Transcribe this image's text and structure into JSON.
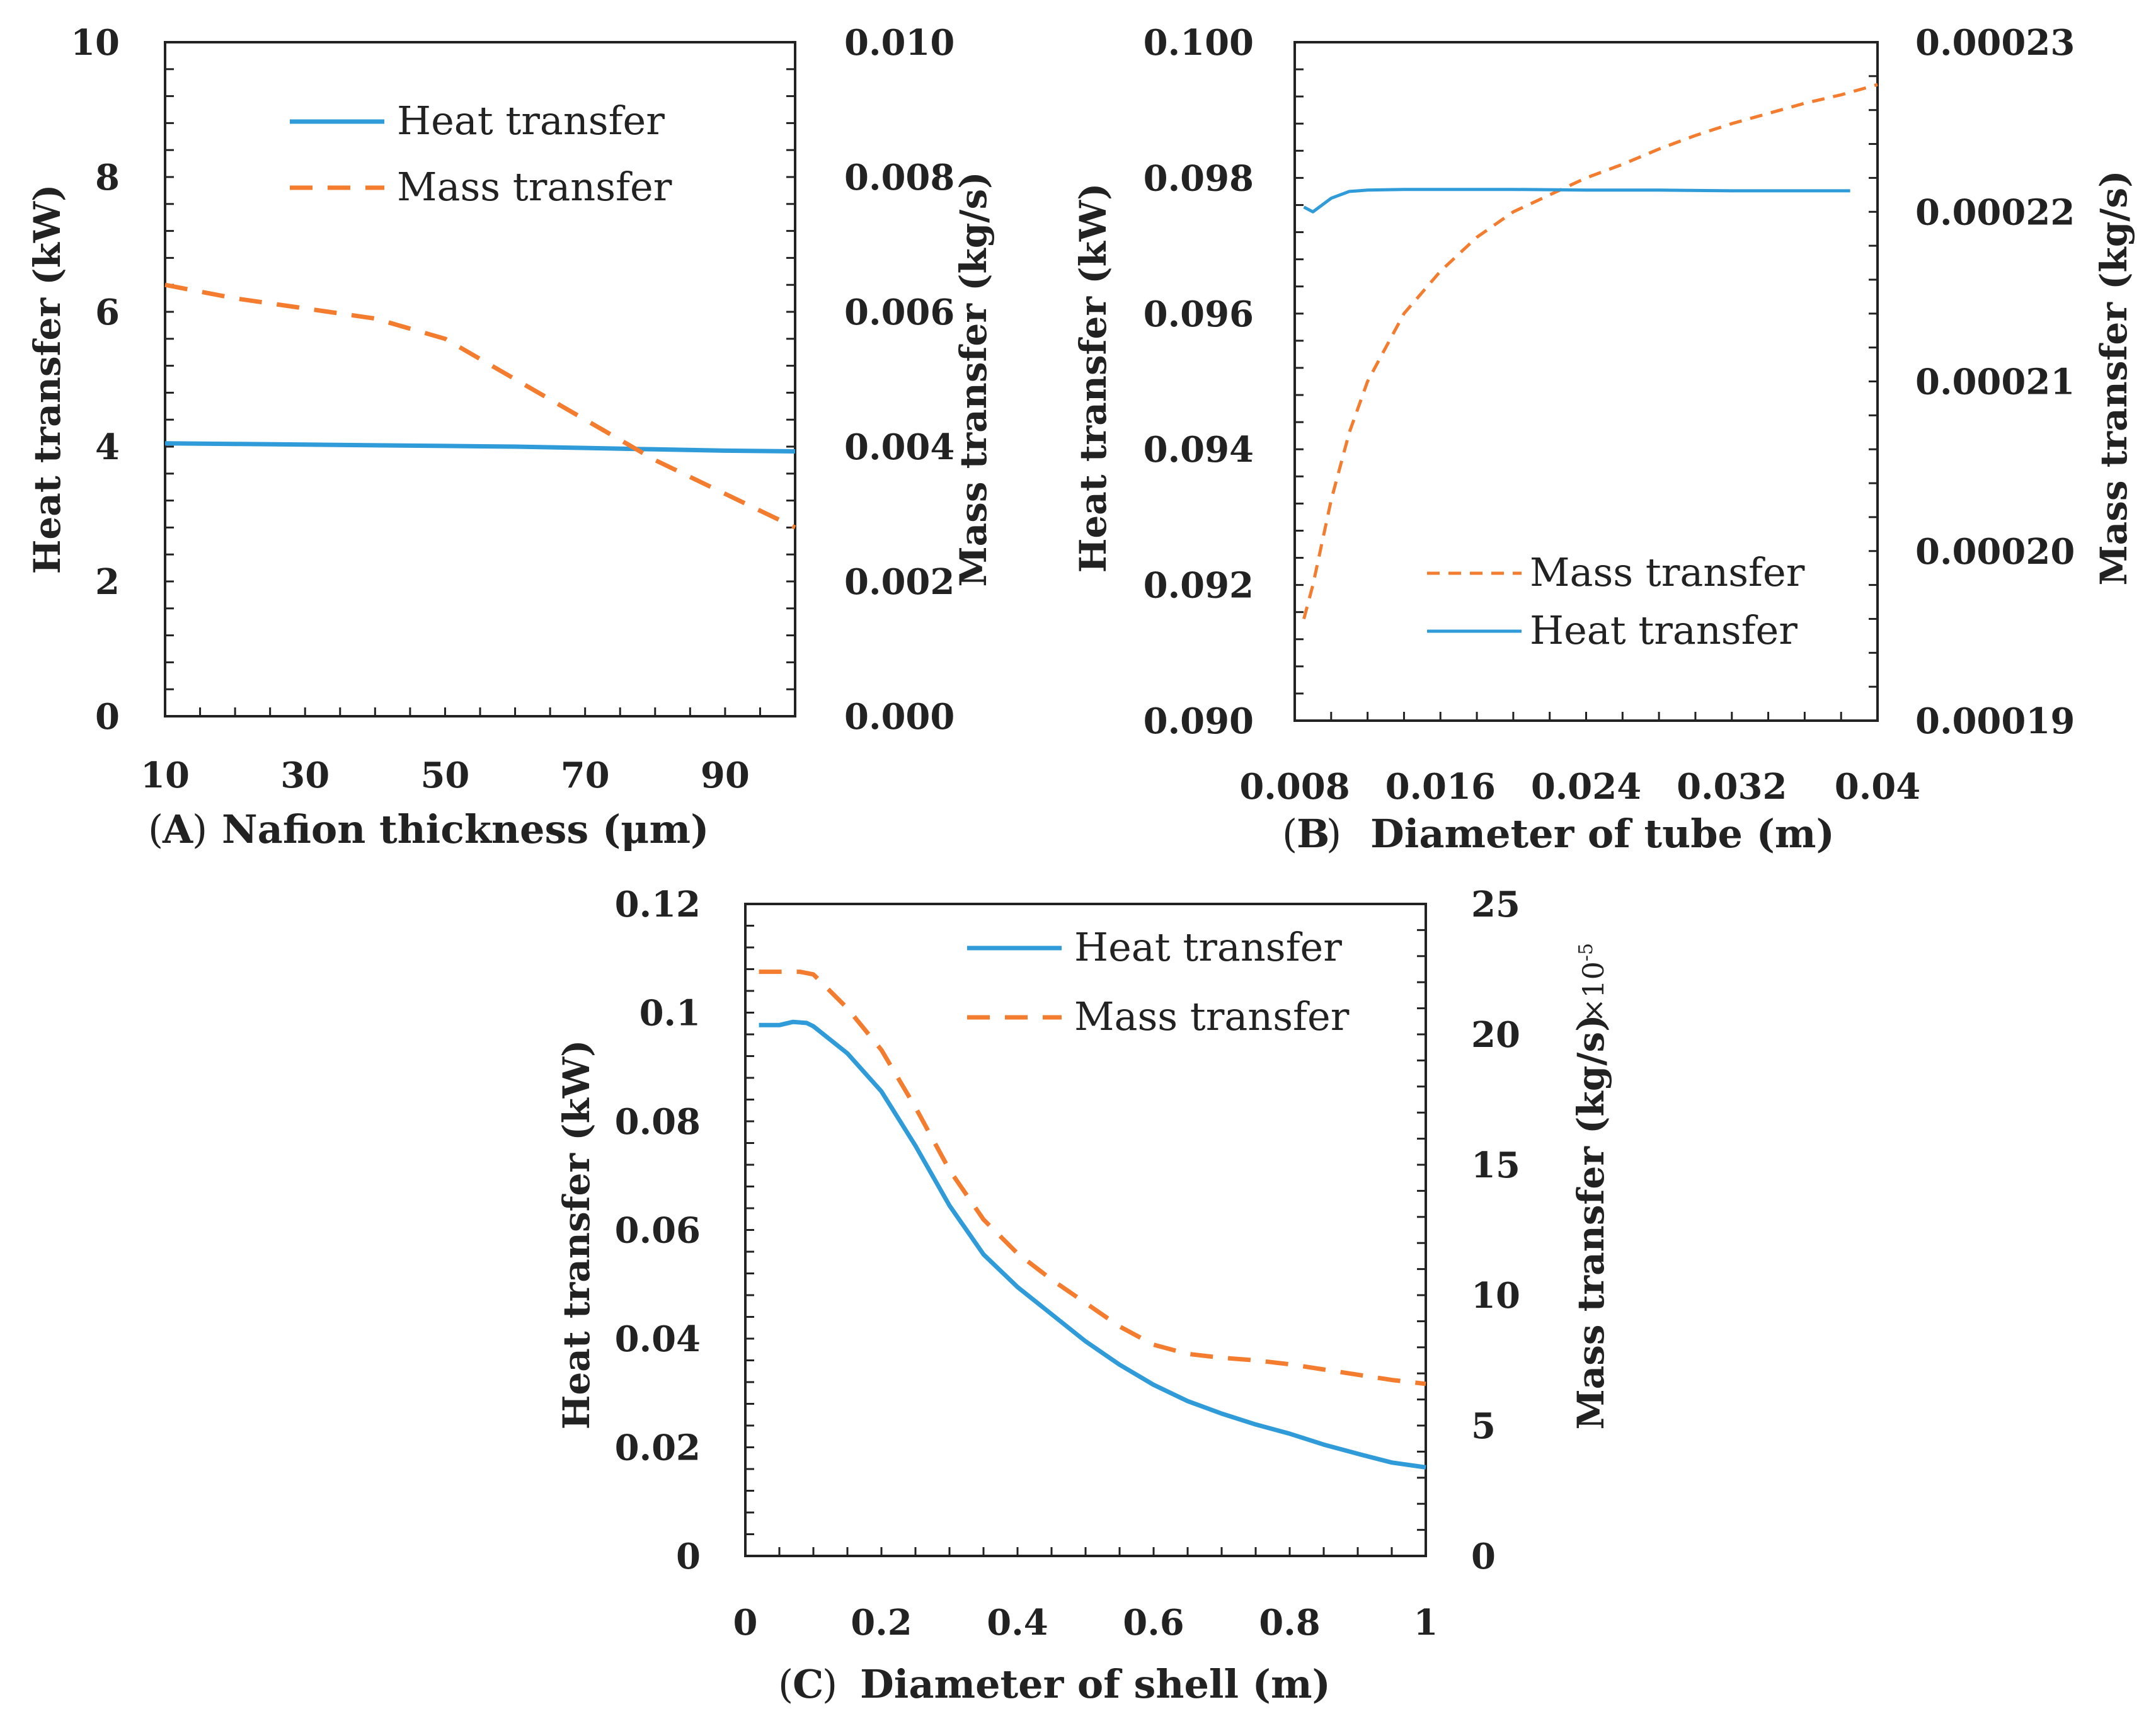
{
  "colors": {
    "heat": "#2f9bd8",
    "mass": "#f47c2f",
    "axis": "#222222"
  },
  "chart_data": [
    {
      "type": "line",
      "panel": "A",
      "caption_letter": "A",
      "xlabel": "Nafion thickness (μm)",
      "ylabel_left": "Heat transfer (kW)",
      "ylabel_right": "Mass transfer (kg/s)",
      "xlim": [
        10,
        100
      ],
      "ylim_left": [
        0,
        10
      ],
      "ylim_right": [
        0,
        0.01
      ],
      "x_ticks": [
        10,
        30,
        50,
        70,
        90
      ],
      "x_tick_labels": [
        "10",
        "30",
        "50",
        "70",
        "90"
      ],
      "y_left_ticks": [
        0,
        2,
        4,
        6,
        8,
        10
      ],
      "y_left_tick_labels": [
        "0",
        "2",
        "4",
        "6",
        "8",
        "10"
      ],
      "y_right_ticks": [
        0,
        0.002,
        0.004,
        0.006,
        0.008,
        0.01
      ],
      "y_right_tick_labels": [
        "0.000",
        "0.002",
        "0.004",
        "0.006",
        "0.008",
        "0.010"
      ],
      "legend_position": "top-left",
      "series": [
        {
          "name": "Heat transfer",
          "axis": "left",
          "style": "solid",
          "color": "#2f9bd8",
          "x": [
            10,
            20,
            30,
            40,
            50,
            60,
            70,
            80,
            90,
            100
          ],
          "y": [
            4.05,
            4.04,
            4.03,
            4.02,
            4.01,
            4.0,
            3.98,
            3.96,
            3.94,
            3.93
          ]
        },
        {
          "name": "Mass transfer",
          "axis": "right",
          "style": "dashed",
          "color": "#f47c2f",
          "x": [
            10,
            20,
            30,
            40,
            50,
            60,
            70,
            80,
            90,
            100
          ],
          "y": [
            0.0064,
            0.0062,
            0.00605,
            0.0059,
            0.0056,
            0.005,
            0.0044,
            0.0038,
            0.0033,
            0.0028
          ]
        }
      ]
    },
    {
      "type": "line",
      "panel": "B",
      "caption_letter": "B",
      "xlabel": "Diameter of tube (m)",
      "ylabel_left": "Heat transfer (kW)",
      "ylabel_right": "Mass transfer (kg/s)",
      "xlim": [
        0.008,
        0.04
      ],
      "ylim_left": [
        0.09,
        0.1
      ],
      "ylim_right": [
        0.00019,
        0.00023
      ],
      "x_ticks": [
        0.008,
        0.016,
        0.024,
        0.032,
        0.04
      ],
      "x_tick_labels": [
        "0.008",
        "0.016",
        "0.024",
        "0.032",
        "0.04"
      ],
      "y_left_ticks": [
        0.09,
        0.092,
        0.094,
        0.096,
        0.098,
        0.1
      ],
      "y_left_tick_labels": [
        "0.090",
        "0.092",
        "0.094",
        "0.096",
        "0.098",
        "0.100"
      ],
      "y_right_ticks": [
        0.00019,
        0.0002,
        0.00021,
        0.00022,
        0.00023
      ],
      "y_right_tick_labels": [
        "0.00019",
        "0.00020",
        "0.00021",
        "0.00022",
        "0.00023"
      ],
      "legend_position": "bottom-right",
      "series": [
        {
          "name": "Mass transfer",
          "axis": "right",
          "style": "dashed",
          "color": "#f47c2f",
          "x": [
            0.0085,
            0.009,
            0.01,
            0.011,
            0.012,
            0.014,
            0.016,
            0.018,
            0.02,
            0.022,
            0.024,
            0.026,
            0.028,
            0.03,
            0.032,
            0.034,
            0.036,
            0.038,
            0.04
          ],
          "y": [
            0.000196,
            0.000198,
            0.000203,
            0.000207,
            0.00021,
            0.000214,
            0.0002165,
            0.0002185,
            0.00022,
            0.000221,
            0.000222,
            0.0002228,
            0.0002237,
            0.0002245,
            0.0002252,
            0.0002258,
            0.0002264,
            0.0002269,
            0.0002275
          ]
        },
        {
          "name": "Heat transfer",
          "axis": "left",
          "style": "solid",
          "color": "#2f9bd8",
          "x": [
            0.0085,
            0.009,
            0.01,
            0.011,
            0.012,
            0.014,
            0.016,
            0.02,
            0.024,
            0.028,
            0.032,
            0.036,
            0.0385
          ],
          "y": [
            0.09757,
            0.0975,
            0.0977,
            0.0978,
            0.09782,
            0.09783,
            0.09783,
            0.09783,
            0.09782,
            0.09782,
            0.09781,
            0.09781,
            0.09781
          ]
        }
      ]
    },
    {
      "type": "line",
      "panel": "C",
      "caption_letter": "C",
      "xlabel": "Diameter of shell (m)",
      "ylabel_left": "Heat transfer (kW)",
      "ylabel_right": "Mass transfer (kg/s)",
      "right_scale_base": "×10",
      "right_scale_exp": "-5",
      "xlim": [
        0,
        1
      ],
      "ylim_left": [
        0,
        0.12
      ],
      "ylim_right": [
        0,
        25
      ],
      "x_ticks": [
        0,
        0.2,
        0.4,
        0.6,
        0.8,
        1
      ],
      "x_tick_labels": [
        "0",
        "0.2",
        "0.4",
        "0.6",
        "0.8",
        "1"
      ],
      "y_left_ticks": [
        0,
        0.02,
        0.04,
        0.06,
        0.08,
        0.1,
        0.12
      ],
      "y_left_tick_labels": [
        "0",
        "0.02",
        "0.04",
        "0.06",
        "0.08",
        "0.1",
        "0.12"
      ],
      "y_right_ticks": [
        0,
        5,
        10,
        15,
        20,
        25
      ],
      "y_right_tick_labels": [
        "0",
        "5",
        "10",
        "15",
        "20",
        "25"
      ],
      "legend_position": "top-right",
      "series": [
        {
          "name": "Heat transfer",
          "axis": "left",
          "style": "solid",
          "color": "#2f9bd8",
          "x": [
            0.02,
            0.05,
            0.07,
            0.09,
            0.1,
            0.15,
            0.2,
            0.25,
            0.3,
            0.35,
            0.4,
            0.45,
            0.5,
            0.55,
            0.6,
            0.65,
            0.7,
            0.75,
            0.8,
            0.85,
            0.9,
            0.95,
            1.0
          ],
          "y": [
            0.0977,
            0.0977,
            0.0983,
            0.0981,
            0.0975,
            0.0925,
            0.0855,
            0.0755,
            0.0645,
            0.0555,
            0.0495,
            0.0445,
            0.0395,
            0.0352,
            0.0315,
            0.0285,
            0.0262,
            0.0242,
            0.0225,
            0.0205,
            0.0188,
            0.0172,
            0.0163
          ]
        },
        {
          "name": "Mass transfer",
          "axis": "right",
          "style": "dashed",
          "color": "#f47c2f",
          "x": [
            0.02,
            0.05,
            0.08,
            0.1,
            0.15,
            0.2,
            0.25,
            0.3,
            0.35,
            0.4,
            0.45,
            0.5,
            0.55,
            0.6,
            0.65,
            0.7,
            0.75,
            0.8,
            0.85,
            0.9,
            0.95,
            1.0
          ],
          "y": [
            22.4,
            22.4,
            22.4,
            22.3,
            21.0,
            19.4,
            17.2,
            14.8,
            12.9,
            11.6,
            10.6,
            9.7,
            8.8,
            8.1,
            7.75,
            7.6,
            7.5,
            7.35,
            7.15,
            6.95,
            6.75,
            6.6
          ]
        }
      ]
    }
  ]
}
